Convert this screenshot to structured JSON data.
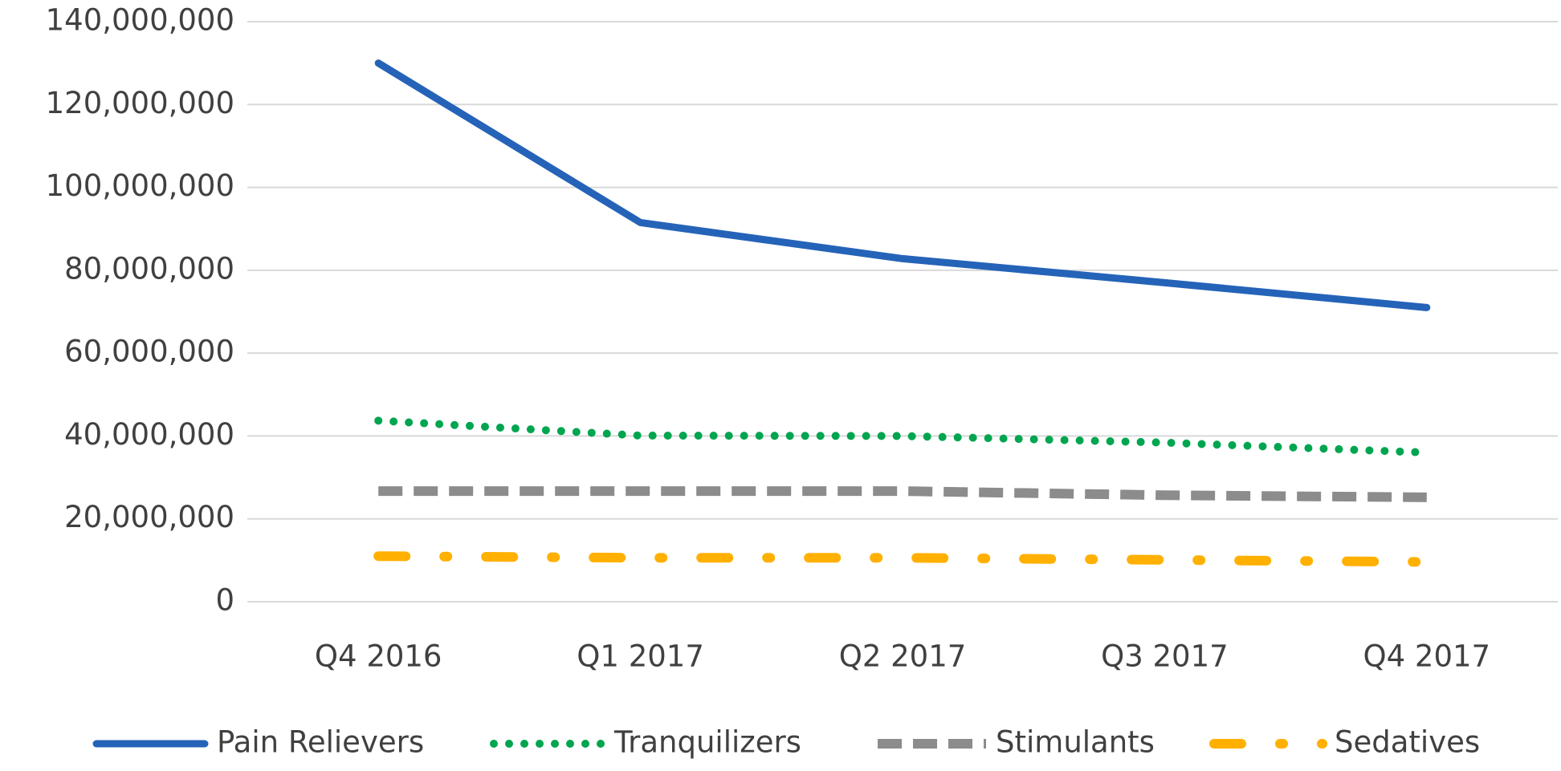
{
  "chart_data": {
    "type": "line",
    "categories": [
      "Q4 2016",
      "Q1 2017",
      "Q2 2017",
      "Q3 2017",
      "Q4 2017"
    ],
    "series": [
      {
        "name": "Pain Relievers",
        "color": "#2563b8",
        "values": [
          130000000,
          91500000,
          82800000,
          77000000,
          71000000
        ]
      },
      {
        "name": "Tranquilizers",
        "color": "#00a550",
        "values": [
          43700000,
          40100000,
          40000000,
          38400000,
          36000000
        ]
      },
      {
        "name": "Stimulants",
        "color": "#8c8c8c",
        "values": [
          26700000,
          26700000,
          26700000,
          25700000,
          25200000
        ]
      },
      {
        "name": "Sedatives",
        "color": "#ffb000",
        "values": [
          11000000,
          10600000,
          10600000,
          10100000,
          9600000
        ]
      }
    ],
    "ylim": [
      0,
      140000000
    ],
    "yticks": [
      {
        "value": 0,
        "label": "0"
      },
      {
        "value": 20000000,
        "label": "20,000,000"
      },
      {
        "value": 40000000,
        "label": "40,000,000"
      },
      {
        "value": 60000000,
        "label": "60,000,000"
      },
      {
        "value": 80000000,
        "label": "80,000,000"
      },
      {
        "value": 100000000,
        "label": "100,000,000"
      },
      {
        "value": 120000000,
        "label": "120,000,000"
      },
      {
        "value": 140000000,
        "label": "140,000,000"
      }
    ],
    "grid": true,
    "legend": "bottom"
  }
}
